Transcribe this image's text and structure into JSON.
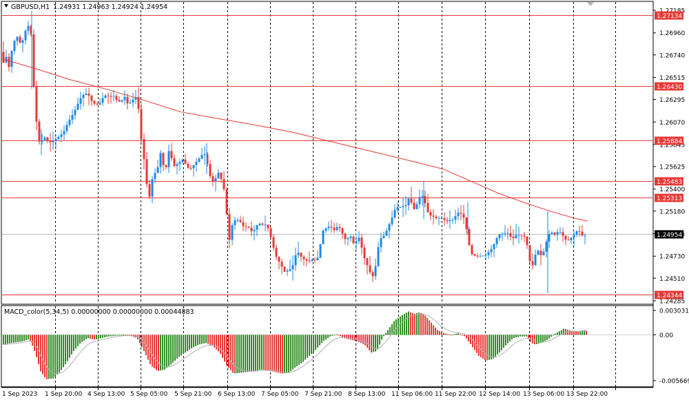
{
  "header": {
    "symbol": "GBPUSD,H1",
    "ohlc": "1.24931 1.24963 1.24924 1.24954"
  },
  "indicator": {
    "label": "MACD_color(5,34,5) 0.00000000 0.00000000 0.00044883"
  },
  "colors": {
    "bull": "#1e88e5",
    "bear": "#e53935",
    "ma": "#e53935",
    "level": "#e53935",
    "grid": "#000000",
    "macd_pos": "#2e8b22",
    "macd_neg": "#e53935",
    "signal": "#b0b0b0"
  },
  "chart_data": [
    {
      "type": "candlestick",
      "title": "GBPUSD,H1",
      "ylim": [
        1.24285,
        1.27185
      ],
      "y_ticks": [
        "1.27185",
        "1.26960",
        "1.26740",
        "1.26515",
        "1.26295",
        "1.26070",
        "1.25845",
        "1.25625",
        "1.25400",
        "1.25180",
        "1.24955",
        "1.24730",
        "1.24510",
        "1.24285"
      ],
      "x_labels": [
        "1 Sep 2023",
        "1 Sep 20:00",
        "4 Sep 13:00",
        "5 Sep 05:00",
        "5 Sep 21:00",
        "6 Sep 13:00",
        "7 Sep 05:00",
        "7 Sep 21:00",
        "8 Sep 13:00",
        "11 Sep 06:00",
        "11 Sep 22:00",
        "12 Sep 14:00",
        "13 Sep 06:00",
        "13 Sep 22:00"
      ],
      "price_levels": [
        {
          "label": "1.27134",
          "value": 1.27134
        },
        {
          "label": "1.26430",
          "value": 1.2643
        },
        {
          "label": "1.25884",
          "value": 1.25884
        },
        {
          "label": "1.25483",
          "value": 1.25483
        },
        {
          "label": "1.25313",
          "value": 1.25313
        },
        {
          "label": "1.24344",
          "value": 1.24344
        }
      ],
      "current_price": {
        "label": "1.24954",
        "value": 1.24954
      },
      "path": [
        [
          0,
          1.2677
        ],
        [
          3,
          1.2665
        ],
        [
          8,
          1.2672
        ],
        [
          12,
          1.2662
        ],
        [
          18,
          1.2686
        ],
        [
          24,
          1.2692
        ],
        [
          30,
          1.2683
        ],
        [
          35,
          1.2697
        ],
        [
          40,
          1.2703
        ],
        [
          43,
          1.2712
        ],
        [
          46,
          1.266
        ],
        [
          50,
          1.2625
        ],
        [
          54,
          1.259
        ],
        [
          58,
          1.2585
        ],
        [
          62,
          1.2593
        ],
        [
          66,
          1.259
        ],
        [
          70,
          1.2586
        ],
        [
          75,
          1.2588
        ],
        [
          80,
          1.259
        ],
        [
          86,
          1.2593
        ],
        [
          92,
          1.2598
        ],
        [
          98,
          1.2607
        ],
        [
          104,
          1.2614
        ],
        [
          110,
          1.2622
        ],
        [
          115,
          1.263
        ],
        [
          120,
          1.2634
        ],
        [
          126,
          1.2636
        ],
        [
          132,
          1.2628
        ],
        [
          138,
          1.2624
        ],
        [
          143,
          1.2625
        ],
        [
          148,
          1.2631
        ],
        [
          153,
          1.2634
        ],
        [
          158,
          1.2632
        ],
        [
          164,
          1.2633
        ],
        [
          170,
          1.2627
        ],
        [
          175,
          1.2628
        ],
        [
          180,
          1.2632
        ],
        [
          185,
          1.2624
        ],
        [
          190,
          1.2628
        ],
        [
          196,
          1.2632
        ],
        [
          200,
          1.262
        ],
        [
          204,
          1.259
        ],
        [
          208,
          1.257
        ],
        [
          212,
          1.2545
        ],
        [
          215,
          1.2528
        ],
        [
          220,
          1.255
        ],
        [
          224,
          1.2556
        ],
        [
          228,
          1.2562
        ],
        [
          232,
          1.2576
        ],
        [
          236,
          1.2564
        ],
        [
          240,
          1.2562
        ],
        [
          244,
          1.2578
        ],
        [
          248,
          1.2571
        ],
        [
          252,
          1.2563
        ],
        [
          256,
          1.2565
        ],
        [
          260,
          1.2567
        ],
        [
          265,
          1.257
        ],
        [
          270,
          1.2562
        ],
        [
          275,
          1.256
        ],
        [
          280,
          1.2564
        ],
        [
          285,
          1.2568
        ],
        [
          290,
          1.2572
        ],
        [
          294,
          1.2576
        ],
        [
          298,
          1.2574
        ],
        [
          302,
          1.2556
        ],
        [
          306,
          1.255
        ],
        [
          310,
          1.2546
        ],
        [
          315,
          1.2558
        ],
        [
          320,
          1.255
        ],
        [
          324,
          1.254
        ],
        [
          328,
          1.2515
        ],
        [
          331,
          1.2485
        ],
        [
          334,
          1.2498
        ],
        [
          338,
          1.251
        ],
        [
          342,
          1.2508
        ],
        [
          346,
          1.251
        ],
        [
          350,
          1.2504
        ],
        [
          354,
          1.2502
        ],
        [
          358,
          1.2503
        ],
        [
          362,
          1.25
        ],
        [
          366,
          1.2496
        ],
        [
          370,
          1.2503
        ],
        [
          374,
          1.2505
        ],
        [
          378,
          1.2506
        ],
        [
          382,
          1.2503
        ],
        [
          386,
          1.2506
        ],
        [
          390,
          1.2496
        ],
        [
          394,
          1.2488
        ],
        [
          398,
          1.2475
        ],
        [
          402,
          1.247
        ],
        [
          406,
          1.2465
        ],
        [
          410,
          1.246
        ],
        [
          414,
          1.2455
        ],
        [
          418,
          1.2462
        ],
        [
          422,
          1.2458
        ],
        [
          426,
          1.247
        ],
        [
          430,
          1.2478
        ],
        [
          434,
          1.2475
        ],
        [
          438,
          1.247
        ],
        [
          442,
          1.247
        ],
        [
          446,
          1.2467
        ],
        [
          450,
          1.2469
        ],
        [
          454,
          1.247
        ],
        [
          458,
          1.2468
        ],
        [
          462,
          1.2475
        ],
        [
          466,
          1.2495
        ],
        [
          470,
          1.2502
        ],
        [
          474,
          1.25
        ],
        [
          478,
          1.2505
        ],
        [
          482,
          1.2498
        ],
        [
          486,
          1.25
        ],
        [
          490,
          1.2504
        ],
        [
          494,
          1.2498
        ],
        [
          498,
          1.2493
        ],
        [
          502,
          1.2487
        ],
        [
          506,
          1.2495
        ],
        [
          510,
          1.249
        ],
        [
          514,
          1.2482
        ],
        [
          518,
          1.2494
        ],
        [
          522,
          1.2489
        ],
        [
          526,
          1.2474
        ],
        [
          530,
          1.2468
        ],
        [
          534,
          1.246
        ],
        [
          538,
          1.2454
        ],
        [
          542,
          1.2452
        ],
        [
          546,
          1.2474
        ],
        [
          550,
          1.249
        ],
        [
          554,
          1.2492
        ],
        [
          558,
          1.2495
        ],
        [
          562,
          1.2502
        ],
        [
          566,
          1.2508
        ],
        [
          570,
          1.2515
        ],
        [
          574,
          1.2524
        ],
        [
          578,
          1.252
        ],
        [
          582,
          1.2524
        ],
        [
          586,
          1.2522
        ],
        [
          590,
          1.2526
        ],
        [
          594,
          1.2535
        ],
        [
          598,
          1.2518
        ],
        [
          602,
          1.2522
        ],
        [
          606,
          1.2528
        ],
        [
          610,
          1.2536
        ],
        [
          614,
          1.253
        ],
        [
          618,
          1.2522
        ],
        [
          622,
          1.2512
        ],
        [
          626,
          1.2515
        ],
        [
          630,
          1.251
        ],
        [
          634,
          1.2512
        ],
        [
          638,
          1.251
        ],
        [
          642,
          1.2512
        ],
        [
          646,
          1.2506
        ],
        [
          650,
          1.251
        ],
        [
          654,
          1.2508
        ],
        [
          658,
          1.2511
        ],
        [
          662,
          1.2515
        ],
        [
          666,
          1.2518
        ],
        [
          670,
          1.2513
        ],
        [
          674,
          1.251
        ],
        [
          678,
          1.249
        ],
        [
          682,
          1.2478
        ],
        [
          686,
          1.2472
        ],
        [
          690,
          1.2475
        ],
        [
          694,
          1.2471
        ],
        [
          698,
          1.2475
        ],
        [
          702,
          1.2472
        ],
        [
          706,
          1.2476
        ],
        [
          710,
          1.2478
        ],
        [
          714,
          1.2482
        ],
        [
          718,
          1.2488
        ],
        [
          722,
          1.2494
        ],
        [
          726,
          1.2496
        ],
        [
          730,
          1.2495
        ],
        [
          734,
          1.2497
        ],
        [
          738,
          1.2495
        ],
        [
          742,
          1.249
        ],
        [
          746,
          1.2492
        ],
        [
          750,
          1.2496
        ],
        [
          754,
          1.2492
        ],
        [
          758,
          1.2495
        ],
        [
          762,
          1.249
        ],
        [
          766,
          1.2478
        ],
        [
          770,
          1.2458
        ],
        [
          774,
          1.247
        ],
        [
          778,
          1.2479
        ],
        [
          782,
          1.2478
        ],
        [
          786,
          1.247
        ],
        [
          790,
          1.2485
        ],
        [
          794,
          1.249
        ],
        [
          798,
          1.25
        ],
        [
          802,
          1.2493
        ],
        [
          806,
          1.2496
        ],
        [
          810,
          1.2498
        ],
        [
          814,
          1.2496
        ],
        [
          818,
          1.2491
        ],
        [
          822,
          1.2488
        ],
        [
          826,
          1.249
        ],
        [
          830,
          1.2493
        ],
        [
          834,
          1.2496
        ],
        [
          838,
          1.25
        ],
        [
          842,
          1.2495
        ],
        [
          846,
          1.2492
        ],
        [
          850,
          1.2495
        ]
      ],
      "ma_path": [
        [
          0,
          1.267
        ],
        [
          50,
          1.266
        ],
        [
          100,
          1.2649
        ],
        [
          150,
          1.264
        ],
        [
          200,
          1.263
        ],
        [
          260,
          1.2617
        ],
        [
          300,
          1.2612
        ],
        [
          360,
          1.2605
        ],
        [
          420,
          1.2597
        ],
        [
          480,
          1.2587
        ],
        [
          540,
          1.2577
        ],
        [
          600,
          1.2567
        ],
        [
          640,
          1.256
        ],
        [
          680,
          1.2548
        ],
        [
          720,
          1.2536
        ],
        [
          760,
          1.2526
        ],
        [
          800,
          1.2517
        ],
        [
          830,
          1.2511
        ],
        [
          850,
          1.2508
        ]
      ]
    },
    {
      "type": "histogram",
      "title": "MACD_color(5,34,5)",
      "ylim": [
        -0.005669,
        0.003031
      ],
      "y_ticks": [
        "0.0030311",
        "0.00",
        "-0.0056699"
      ],
      "path": [
        [
          2,
          -0.0012
        ],
        [
          14,
          -0.001
        ],
        [
          30,
          -0.0008
        ],
        [
          40,
          -0.0005
        ],
        [
          48,
          -0.0022
        ],
        [
          56,
          -0.0045
        ],
        [
          64,
          -0.0055
        ],
        [
          74,
          -0.0054
        ],
        [
          84,
          -0.0046
        ],
        [
          94,
          -0.0034
        ],
        [
          104,
          -0.002
        ],
        [
          114,
          -0.001
        ],
        [
          124,
          -0.0004
        ],
        [
          134,
          -0.0006
        ],
        [
          144,
          -0.0004
        ],
        [
          154,
          -0.0002
        ],
        [
          166,
          -0.0001
        ],
        [
          176,
          0.0
        ],
        [
          186,
          -0.0001
        ],
        [
          196,
          -0.0004
        ],
        [
          206,
          -0.002
        ],
        [
          216,
          -0.0038
        ],
        [
          226,
          -0.0045
        ],
        [
          236,
          -0.0043
        ],
        [
          246,
          -0.0036
        ],
        [
          256,
          -0.0028
        ],
        [
          266,
          -0.0022
        ],
        [
          276,
          -0.0016
        ],
        [
          286,
          -0.0012
        ],
        [
          296,
          -0.001
        ],
        [
          306,
          -0.0014
        ],
        [
          316,
          -0.0022
        ],
        [
          326,
          -0.0038
        ],
        [
          336,
          -0.0048
        ],
        [
          346,
          -0.0047
        ],
        [
          356,
          -0.0046
        ],
        [
          366,
          -0.0045
        ],
        [
          376,
          -0.0043
        ],
        [
          386,
          -0.0044
        ],
        [
          396,
          -0.0046
        ],
        [
          406,
          -0.0048
        ],
        [
          416,
          -0.0047
        ],
        [
          426,
          -0.004
        ],
        [
          436,
          -0.0034
        ],
        [
          446,
          -0.0026
        ],
        [
          456,
          -0.0018
        ],
        [
          466,
          -0.0008
        ],
        [
          476,
          -0.0002
        ],
        [
          486,
          0.0001
        ],
        [
          496,
          -0.0004
        ],
        [
          506,
          -0.0006
        ],
        [
          516,
          -0.0008
        ],
        [
          526,
          -0.0012
        ],
        [
          536,
          -0.0022
        ],
        [
          544,
          -0.002
        ],
        [
          552,
          -0.0004
        ],
        [
          560,
          0.0006
        ],
        [
          570,
          0.0018
        ],
        [
          580,
          0.0024
        ],
        [
          590,
          0.0029
        ],
        [
          598,
          0.0026
        ],
        [
          606,
          0.0028
        ],
        [
          614,
          0.0024
        ],
        [
          622,
          0.0016
        ],
        [
          632,
          0.0006
        ],
        [
          642,
          0.0002
        ],
        [
          652,
          0.0
        ],
        [
          662,
          0.0002
        ],
        [
          672,
          -0.0002
        ],
        [
          682,
          -0.0014
        ],
        [
          692,
          -0.0026
        ],
        [
          702,
          -0.0032
        ],
        [
          712,
          -0.003
        ],
        [
          722,
          -0.0022
        ],
        [
          732,
          -0.0012
        ],
        [
          742,
          -0.0004
        ],
        [
          752,
          -0.0002
        ],
        [
          762,
          -0.0002
        ],
        [
          768,
          -0.001
        ],
        [
          774,
          -0.0012
        ],
        [
          782,
          -0.001
        ],
        [
          792,
          -0.0006
        ],
        [
          800,
          0.0
        ],
        [
          808,
          0.0004
        ],
        [
          816,
          0.0008
        ],
        [
          826,
          0.0005
        ],
        [
          836,
          0.0004
        ],
        [
          844,
          0.0006
        ],
        [
          850,
          0.0005
        ]
      ]
    }
  ]
}
